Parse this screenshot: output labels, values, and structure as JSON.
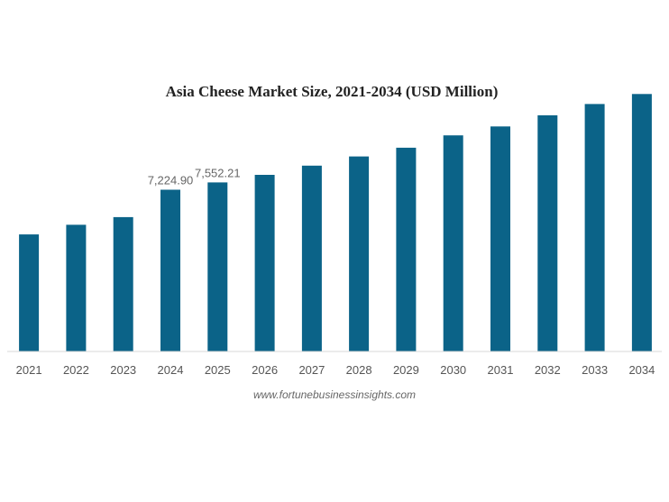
{
  "chart_data": {
    "type": "bar",
    "title": "Asia Cheese Market Size, 2021-2034 (USD Million)",
    "xlabel": "",
    "ylabel": "",
    "categories": [
      "2021",
      "2022",
      "2023",
      "2024",
      "2025",
      "2026",
      "2027",
      "2028",
      "2029",
      "2030",
      "2031",
      "2032",
      "2033",
      "2034"
    ],
    "values": [
      5230,
      5660,
      6000,
      7224.9,
      7552.21,
      7890,
      8300,
      8710,
      9100,
      9650,
      10050,
      10550,
      11050,
      11500
    ],
    "data_labels": [
      {
        "category": "2024",
        "text": "7,224.90"
      },
      {
        "category": "2025",
        "text": "7,552.21"
      }
    ],
    "ylim": [
      0,
      13000
    ],
    "grid": false,
    "bar_color": "#0b6388",
    "source": "www.fortunebusinessinsights.com"
  }
}
